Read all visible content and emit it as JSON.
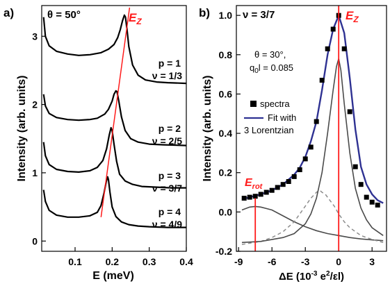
{
  "chart_data": [
    {
      "panel_label": "a)",
      "type": "line",
      "annotation": "θ = 50°",
      "peak_label": "E",
      "peak_label_sub": "Z",
      "xlabel": "E (meV)",
      "ylabel": "Intensity (arb. units)",
      "xlim": [
        0.01,
        0.4
      ],
      "ylim": [
        -0.15,
        3.45
      ],
      "xticks": [
        "0.1",
        "0.2",
        "0.3",
        "0.4"
      ],
      "xtick_values": [
        0.1,
        0.2,
        0.3,
        0.4
      ],
      "yticks": [
        "0",
        "1",
        "2",
        "3"
      ],
      "ytick_values": [
        0,
        1,
        2,
        3
      ],
      "grid": false,
      "series": [
        {
          "label_p": "p = 1",
          "label_nu": "ν = 1/3",
          "x": [
            0.015,
            0.02,
            0.03,
            0.05,
            0.08,
            0.11,
            0.14,
            0.17,
            0.19,
            0.205,
            0.215,
            0.222,
            0.228,
            0.233,
            0.236,
            0.24,
            0.245,
            0.255,
            0.27,
            0.29,
            0.32,
            0.35,
            0.4
          ],
          "y": [
            3.28,
            3.0,
            2.86,
            2.78,
            2.74,
            2.72,
            2.73,
            2.76,
            2.81,
            2.88,
            2.98,
            3.1,
            3.23,
            3.31,
            3.28,
            3.1,
            2.85,
            2.58,
            2.43,
            2.36,
            2.33,
            2.32,
            2.31
          ]
        },
        {
          "label_p": "p = 2",
          "label_nu": "ν = 2/5",
          "x": [
            0.015,
            0.02,
            0.03,
            0.05,
            0.08,
            0.11,
            0.14,
            0.16,
            0.18,
            0.19,
            0.2,
            0.205,
            0.21,
            0.213,
            0.218,
            0.225,
            0.235,
            0.25,
            0.27,
            0.3,
            0.34,
            0.4
          ],
          "y": [
            2.15,
            1.98,
            1.87,
            1.81,
            1.78,
            1.77,
            1.78,
            1.8,
            1.86,
            1.93,
            2.05,
            2.15,
            2.2,
            2.19,
            2.05,
            1.82,
            1.62,
            1.5,
            1.45,
            1.42,
            1.41,
            1.4
          ]
        },
        {
          "label_p": "p = 3",
          "label_nu": "ν = 3/7",
          "x": [
            0.015,
            0.02,
            0.03,
            0.05,
            0.08,
            0.11,
            0.14,
            0.16,
            0.175,
            0.185,
            0.192,
            0.197,
            0.2,
            0.205,
            0.212,
            0.22,
            0.235,
            0.255,
            0.28,
            0.32,
            0.36,
            0.4
          ],
          "y": [
            1.45,
            1.25,
            1.12,
            1.05,
            1.02,
            1.01,
            1.03,
            1.08,
            1.18,
            1.35,
            1.55,
            1.66,
            1.62,
            1.42,
            1.17,
            0.98,
            0.88,
            0.83,
            0.8,
            0.79,
            0.78,
            0.78
          ]
        },
        {
          "label_p": "p = 4",
          "label_nu": "ν = 4/9",
          "x": [
            0.015,
            0.02,
            0.03,
            0.05,
            0.08,
            0.11,
            0.14,
            0.16,
            0.17,
            0.178,
            0.184,
            0.188,
            0.19,
            0.194,
            0.2,
            0.21,
            0.225,
            0.245,
            0.27,
            0.3,
            0.35,
            0.4
          ],
          "y": [
            0.75,
            0.58,
            0.45,
            0.38,
            0.35,
            0.35,
            0.37,
            0.42,
            0.52,
            0.7,
            0.87,
            0.94,
            0.9,
            0.72,
            0.5,
            0.36,
            0.28,
            0.24,
            0.22,
            0.21,
            0.2,
            0.2
          ]
        }
      ],
      "ez_line": {
        "x": [
          0.17,
          0.247
        ],
        "y": [
          0.35,
          3.42
        ]
      }
    },
    {
      "panel_label": "b)",
      "type": "scatter",
      "annotation": "ν = 3/7",
      "params_line1": "θ = 30°,",
      "params_line2_a": "q",
      "params_line2_sub": "0",
      "params_line2_b": "l = 0.085",
      "peak_label": "E",
      "peak_label_sub": "Z",
      "rot_label": "E",
      "rot_label_sub": "rot",
      "xlabel": "ΔE (10",
      "xlabel_sup": "-3",
      "xlabel_mid": " e",
      "xlabel_sup2": "2",
      "xlabel_end": "/εl)",
      "ylabel": "Intensity (arb. units)",
      "xlim": [
        -9.2,
        4.3
      ],
      "ylim": [
        -0.2,
        1.05
      ],
      "xticks": [
        "-9",
        "-6",
        "-3",
        "0",
        "3"
      ],
      "xtick_values": [
        -9,
        -6,
        -3,
        0,
        3
      ],
      "yticks": [
        "-0.2",
        "0.0",
        "0.2",
        "0.4",
        "0.6",
        "0.8",
        "1.0"
      ],
      "ytick_values": [
        -0.2,
        0.0,
        0.2,
        0.4,
        0.6,
        0.8,
        1.0
      ],
      "grid": false,
      "legend": {
        "spectra": "spectra",
        "fit_line1": "Fit with",
        "fit_line2": "3 Lorentzian"
      },
      "colors": {
        "fit": "#2e3192",
        "components": "#4a4a4a",
        "dashed": "#8c8c8c",
        "markers": "#000000",
        "red": "#ff1a1a"
      },
      "spectra": {
        "x": [
          -8.5,
          -8.0,
          -7.5,
          -7.0,
          -6.5,
          -6.0,
          -5.5,
          -5.0,
          -4.5,
          -4.0,
          -3.5,
          -3.0,
          -2.5,
          -2.0,
          -1.5,
          -1.0,
          -0.5,
          0.0,
          0.5,
          1.0,
          1.5,
          2.0,
          2.5,
          3.0,
          3.5
        ],
        "y": [
          0.07,
          0.075,
          0.08,
          0.09,
          0.1,
          0.11,
          0.125,
          0.14,
          0.155,
          0.18,
          0.215,
          0.27,
          0.33,
          0.46,
          0.67,
          0.83,
          0.93,
          1.0,
          0.83,
          0.51,
          0.23,
          0.14,
          0.075,
          0.05,
          0.035
        ]
      },
      "fit": {
        "x": [
          -8.7,
          -8.0,
          -7.0,
          -6.0,
          -5.0,
          -4.0,
          -3.5,
          -3.0,
          -2.5,
          -2.0,
          -1.5,
          -1.0,
          -0.5,
          0.0,
          0.5,
          1.0,
          1.5,
          2.0,
          2.5,
          3.0,
          3.5,
          4.0
        ],
        "y": [
          0.065,
          0.075,
          0.09,
          0.11,
          0.14,
          0.19,
          0.225,
          0.28,
          0.36,
          0.46,
          0.62,
          0.8,
          0.93,
          1.0,
          0.91,
          0.68,
          0.42,
          0.23,
          0.14,
          0.09,
          0.06,
          0.045
        ]
      },
      "component_main": {
        "x": [
          -8.7,
          -7.0,
          -5.0,
          -4.0,
          -3.0,
          -2.5,
          -2.0,
          -1.5,
          -1.0,
          -0.5,
          -0.2,
          0.0,
          0.2,
          0.5,
          1.0,
          1.5,
          2.0,
          2.5,
          3.0,
          3.5,
          4.0
        ],
        "y": [
          -0.155,
          -0.15,
          -0.13,
          -0.11,
          -0.06,
          -0.01,
          0.07,
          0.2,
          0.4,
          0.62,
          0.74,
          0.78,
          0.72,
          0.55,
          0.3,
          0.12,
          0.02,
          -0.04,
          -0.08,
          -0.1,
          -0.12
        ]
      },
      "component_mid": {
        "x": [
          -8.7,
          -7.0,
          -6.0,
          -5.0,
          -4.0,
          -3.0,
          -2.5,
          -2.0,
          -1.7,
          -1.5,
          -1.2,
          -0.8,
          -0.4,
          0.0,
          0.5,
          1.0,
          1.5,
          2.0,
          3.0,
          4.0
        ],
        "y": [
          -0.165,
          -0.15,
          -0.13,
          -0.1,
          -0.05,
          0.03,
          0.07,
          0.1,
          0.11,
          0.1,
          0.09,
          0.06,
          0.03,
          -0.01,
          -0.05,
          -0.08,
          -0.1,
          -0.12,
          -0.14,
          -0.155
        ]
      },
      "component_rot": {
        "x": [
          -8.7,
          -8.0,
          -7.5,
          -7.0,
          -6.0,
          -5.0,
          -4.0,
          -3.0,
          -2.0,
          -1.0,
          0.0,
          1.0,
          2.0,
          3.0,
          4.0
        ],
        "y": [
          0.01,
          0.025,
          0.028,
          0.025,
          0.01,
          -0.02,
          -0.05,
          -0.075,
          -0.095,
          -0.11,
          -0.12,
          -0.13,
          -0.137,
          -0.142,
          -0.146
        ]
      },
      "ez_x": 0.0,
      "erot_x": -7.5,
      "erot_top": 0.07
    }
  ]
}
